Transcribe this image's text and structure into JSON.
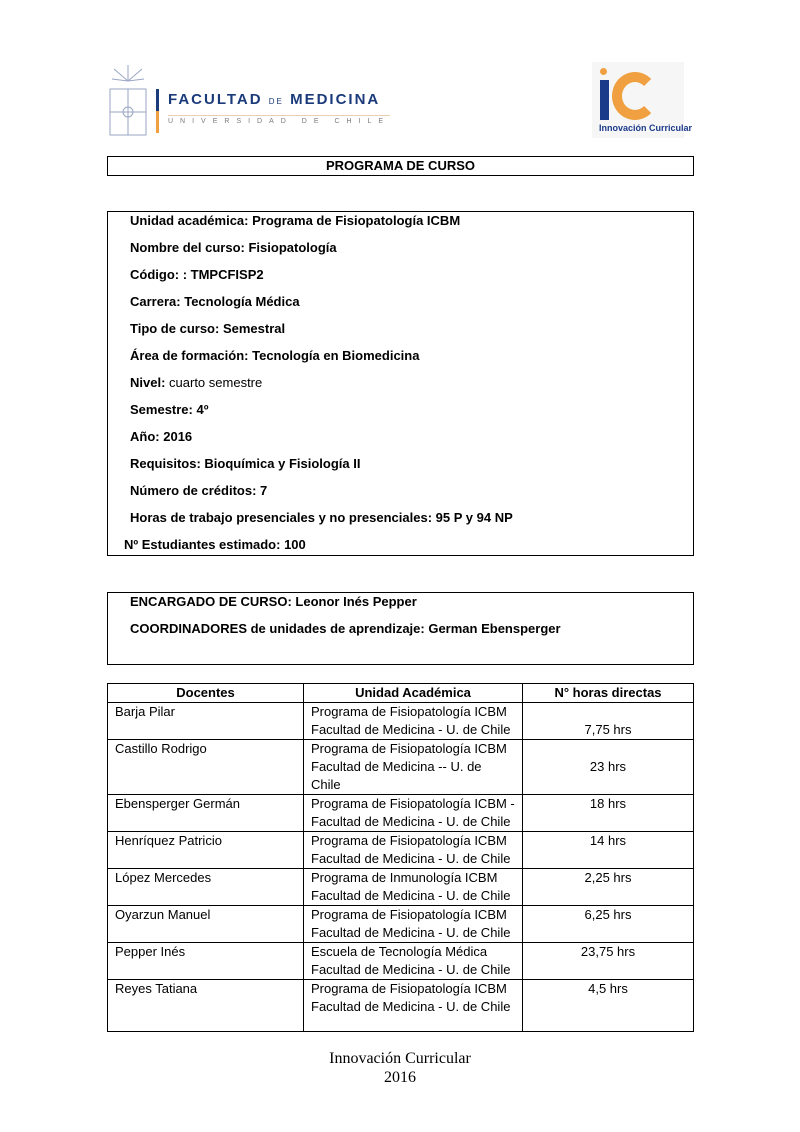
{
  "logos": {
    "left": {
      "line1_a": "FACULTAD",
      "line1_b": "DE",
      "line1_c": "MEDICINA",
      "line2": "UNIVERSIDAD DE CHILE"
    },
    "right": {
      "mark": "iC",
      "caption": "Innovación Curricular"
    }
  },
  "title": "PROGRAMA DE CURSO",
  "info": [
    {
      "label": "Unidad académica:",
      "value": "Programa de Fisiopatología ICBM"
    },
    {
      "label": "Nombre del curso:",
      "value": "Fisiopatología"
    },
    {
      "label": "Código:",
      "value": ": TMPCFISP2"
    },
    {
      "label": "Carrera:",
      "value": "Tecnología Médica"
    },
    {
      "label": "Tipo de curso:",
      "value": "Semestral"
    },
    {
      "label": "Área de formación:",
      "value": "Tecnología en Biomedicina"
    },
    {
      "label": "Nivel:",
      "value": "cuarto semestre"
    },
    {
      "label": "Semestre:",
      "value": "4º"
    },
    {
      "label": "Año:",
      "value": "2016"
    },
    {
      "label": "Requisitos:",
      "value": "Bioquímica y Fisiología II"
    },
    {
      "label": "Número de créditos:",
      "value": "7"
    },
    {
      "label": "Horas de trabajo presenciales y no presenciales:",
      "value": "95 P y 94 NP"
    },
    {
      "label": "Nº Estudiantes estimado:",
      "value": "100"
    }
  ],
  "encargado": {
    "label": "ENCARGADO DE CURSO:",
    "value": "Leonor Inés Pepper"
  },
  "coordinadores": {
    "label": "COORDINADORES de unidades de aprendizaje:",
    "value": "German Ebensperger"
  },
  "table": {
    "headers": [
      "Docentes",
      "Unidad Académica",
      "N° horas directas"
    ],
    "rows": [
      {
        "docente": "Barja Pilar",
        "unidad": [
          "Programa de Fisiopatología ICBM",
          "Facultad de Medicina - U. de Chile"
        ],
        "horas": "7,75 hrs"
      },
      {
        "docente": "Castillo Rodrigo",
        "unidad": [
          "Programa de Fisiopatología ICBM",
          "Facultad de Medicina -- U. de",
          "Chile"
        ],
        "horas": "23 hrs"
      },
      {
        "docente": "Ebensperger Germán",
        "unidad": [
          "Programa de Fisiopatología ICBM -",
          "Facultad de Medicina - U. de Chile"
        ],
        "horas": "18 hrs"
      },
      {
        "docente": "Henríquez  Patricio",
        "unidad": [
          "Programa de Fisiopatología ICBM",
          "Facultad de Medicina - U. de Chile"
        ],
        "horas": "14 hrs"
      },
      {
        "docente": "López Mercedes",
        "unidad": [
          "Programa de Inmunología ICBM",
          "Facultad de Medicina - U. de Chile"
        ],
        "horas": "2,25 hrs"
      },
      {
        "docente": "Oyarzun Manuel",
        "unidad": [
          "Programa de Fisiopatología ICBM",
          "Facultad de Medicina - U. de Chile"
        ],
        "horas": "6,25 hrs"
      },
      {
        "docente": "Pepper Inés",
        "unidad": [
          "Escuela de Tecnología Médica",
          "Facultad de Medicina - U. de Chile"
        ],
        "horas": "23,75 hrs"
      },
      {
        "docente": "Reyes Tatiana",
        "unidad": [
          "Programa de Fisiopatología ICBM",
          "Facultad de Medicina - U. de Chile"
        ],
        "horas": "4,5 hrs"
      }
    ]
  },
  "footer": {
    "line1": "Innovación  Curricular",
    "line2": "2016"
  }
}
